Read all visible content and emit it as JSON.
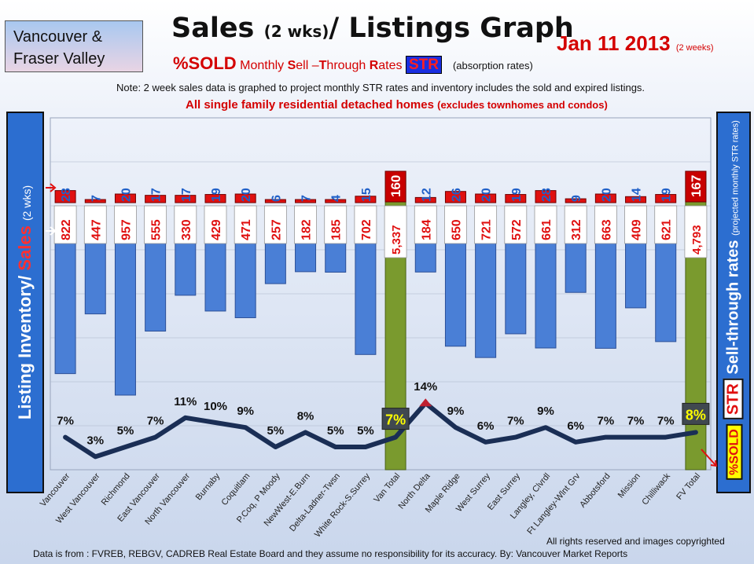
{
  "region": {
    "line1": "Vancouver &",
    "line2": "Fraser Valley"
  },
  "title": {
    "main": "Sales ",
    "paren": "(2 wks)",
    "rest": "/ Listings Graph"
  },
  "date": {
    "text": "Jan 11 2013",
    "note": "(2 weeks)"
  },
  "subtitle": {
    "sold": "%SOLD",
    "pre": " Monthly ",
    "s": "S",
    "ell": "ell –",
    "t": "T",
    "hrough": "hrough ",
    "r": "R",
    "ates": "ates ",
    "str": "STR",
    "absorption": "(absorption rates)"
  },
  "note": "Note: 2 week sales data is graphed to project monthly STR rates and inventory includes the sold and expired listings.",
  "note2": {
    "main": "All single family residential detached homes ",
    "paren": "(excludes townhomes and condos)"
  },
  "left_axis": {
    "part1": "Listing Inventory",
    "slash": "/ ",
    "sales": "Sales",
    "paren": "(2 wks)"
  },
  "right_axis": {
    "main": "Sell-through rates",
    "paren": "(projected monthly STR rates)",
    "str": "STR",
    "sold": "%SOLD"
  },
  "footer": "Data is from : FVREB, REBGV, CADREB Real Estate Board and they assume no responsibility for its accuracy. By: Vancouver Market Reports",
  "rights": "All rights reserved and  images copyrighted",
  "colors": {
    "listings": "#4a7fd6",
    "sales": "#e01010",
    "total": "#7a9a2e",
    "line": "#1a2e55",
    "sales_label": "#2060c8",
    "listings_label": "#e01010"
  },
  "chart_data": {
    "type": "bar",
    "categories": [
      "Vancouver",
      "West Vancouver",
      "Richmond",
      "East Vancouver",
      "North Vancouver",
      "Burnaby",
      "Coquitlam",
      "P.Coq, P Moody",
      "NewWest-E.Burn",
      "Delta-Ladner-Twsn",
      "White Rock-S.Surrey",
      "Van Total",
      "North Delta",
      "Maple Ridge",
      "West Surrey",
      "East Surrey",
      "Langley, Clvrdl",
      "Ft Langley-Wlnt Grv",
      "Abbotsford",
      "Mission",
      "Chilliwack",
      "FV Total"
    ],
    "listings": [
      822,
      447,
      957,
      555,
      330,
      429,
      471,
      257,
      182,
      185,
      702,
      5337,
      184,
      650,
      721,
      572,
      661,
      312,
      663,
      409,
      621,
      4793
    ],
    "listings_labels": [
      "822",
      "447",
      "957",
      "555",
      "330",
      "429",
      "471",
      "257",
      "182",
      "185",
      "702",
      "5,337",
      "184",
      "650",
      "721",
      "572",
      "661",
      "312",
      "663",
      "409",
      "621",
      "4,793"
    ],
    "sales": [
      28,
      7,
      20,
      17,
      17,
      19,
      20,
      6,
      7,
      4,
      15,
      160,
      12,
      26,
      20,
      19,
      28,
      9,
      20,
      14,
      19,
      167
    ],
    "str_percent": [
      7,
      3,
      5,
      7,
      11,
      10,
      9,
      5,
      8,
      5,
      5,
      7,
      14,
      9,
      6,
      7,
      9,
      6,
      7,
      7,
      7,
      8
    ],
    "str_labels": [
      "7%",
      "3%",
      "5%",
      "7%",
      "11%",
      "10%",
      "9%",
      "5%",
      "8%",
      "5%",
      "5%",
      "7%",
      "14%",
      "9%",
      "6%",
      "7%",
      "9%",
      "6%",
      "7%",
      "7%",
      "7%",
      "8%"
    ],
    "totals": [
      "Van Total",
      "FV Total"
    ]
  }
}
